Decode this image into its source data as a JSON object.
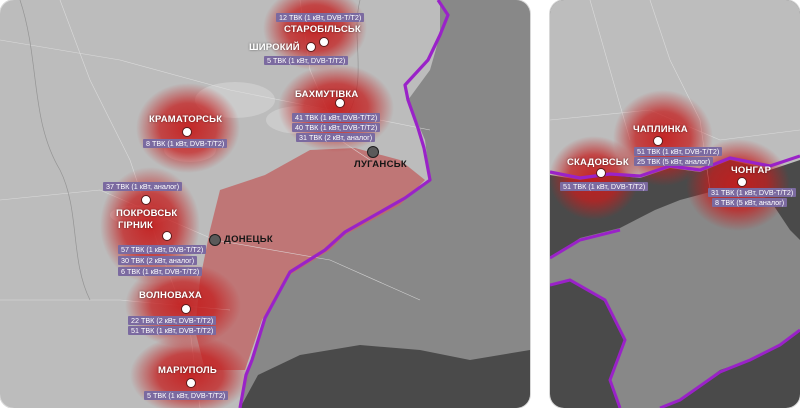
{
  "colors": {
    "background": "#ffffff",
    "land_unocc": "#b9b9b9",
    "land_occ": "#858585",
    "sea": "#4a4a4a",
    "occupied_fill": "#c06060",
    "frontline": "#9a22c8",
    "coverage": "#c41e1e",
    "info_box": "#7b6aa0"
  },
  "main_map": {
    "transmitters": [
      {
        "name": "СТАРОБІЛЬСЬК",
        "info": [
          "12 ТВК (1 кВт, DVB-T/T2)"
        ]
      },
      {
        "name": "ШИРОКИЙ",
        "info": [
          "5 ТВК (1 кВт, DVB-T/T2)"
        ]
      },
      {
        "name": "БАХМУТІВКА",
        "info": [
          "41 ТВК (1 кВт, DVB-T/T2)",
          "40 ТВК (1 кВт, DVB-T/T2)",
          "31 ТВК (2 кВт, аналог)"
        ]
      },
      {
        "name": "КРАМАТОРСЬК",
        "info": [
          "8 ТВК (1 кВт, DVB-T/T2)"
        ]
      },
      {
        "name": "ПОКРОВСЬК",
        "info": [
          "37 ТВК (1 кВт, аналог)"
        ]
      },
      {
        "name": "ГІРНИК",
        "info": [
          "57 ТВК (1 кВт, DVB-T/T2)",
          "30 ТВК (2 кВт, аналог)",
          "6 ТВК (1 кВт, DVB-T/T2)"
        ]
      },
      {
        "name": "ВОЛНОВАХА",
        "info": [
          "22 ТВК (2 кВт, DVB-T/T2)",
          "51 ТВК (1 кВт, DVB-T/T2)"
        ]
      },
      {
        "name": "МАРІУПОЛЬ",
        "info": [
          "5 ТВК (1 кВт, DVB-T/T2)"
        ]
      }
    ],
    "cities": [
      {
        "name": "ЛУГАНСЬК"
      },
      {
        "name": "ДОНЕЦЬК"
      }
    ]
  },
  "crimea_map": {
    "transmitters": [
      {
        "name": "ЧАПЛИНКА",
        "info": [
          "51 ТВК (1 кВт, DVB-T/T2)",
          "25 ТВК (5 кВт, аналог)"
        ]
      },
      {
        "name": "СКАДОВСЬК",
        "info": [
          "51 ТВК (1 кВт, DVB-T/T2)"
        ]
      },
      {
        "name": "ЧОНГАР",
        "info": [
          "31 ТВК (1 кВт, DVB-T/T2)",
          "8 ТВК (5 кВт, аналог)"
        ]
      }
    ]
  }
}
